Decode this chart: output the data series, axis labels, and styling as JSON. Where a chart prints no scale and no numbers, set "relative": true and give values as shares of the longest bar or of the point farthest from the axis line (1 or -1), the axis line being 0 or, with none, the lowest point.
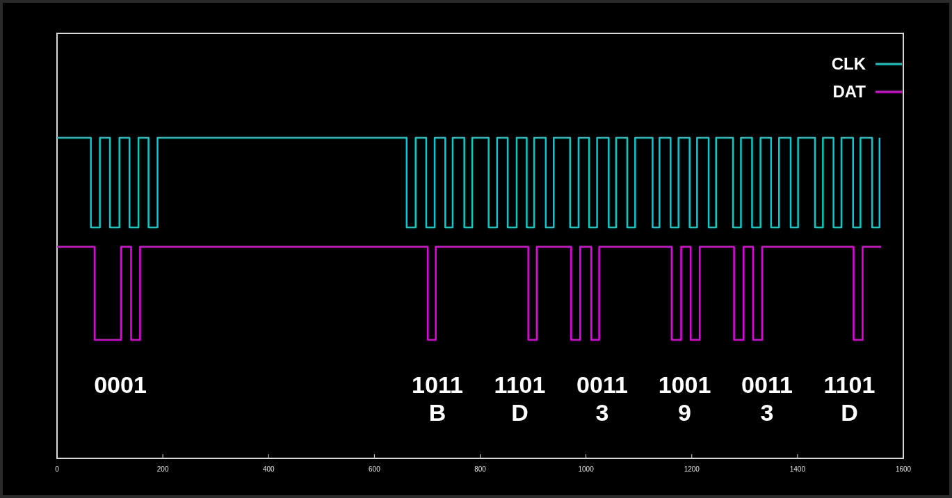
{
  "chart_data": {
    "type": "step",
    "relative": true,
    "xlim": [
      0,
      1600
    ],
    "xticks": [
      0,
      200,
      400,
      600,
      800,
      1000,
      1200,
      1400,
      1600
    ],
    "legend": "top right",
    "grid": false,
    "series": [
      {
        "name": "CLK",
        "color": "#00cccc",
        "x": [
          0,
          64,
          81,
          100,
          118,
          137,
          154,
          173,
          190,
          661,
          678,
          698,
          714,
          734,
          748,
          770,
          785,
          816,
          832,
          852,
          869,
          888,
          902,
          924,
          939,
          970,
          986,
          1006,
          1021,
          1043,
          1057,
          1078,
          1093,
          1126,
          1139,
          1160,
          1175,
          1196,
          1210,
          1232,
          1246,
          1278,
          1293,
          1314,
          1330,
          1350,
          1365,
          1387,
          1401,
          1433,
          1448,
          1468,
          1483,
          1505,
          1519,
          1541,
          1555
        ],
        "values": [
          1,
          0.72,
          1,
          0.72,
          1,
          0.72,
          1,
          0.72,
          1,
          0.72,
          1,
          0.72,
          1,
          0.72,
          1,
          0.72,
          1,
          0.72,
          1,
          0.72,
          1,
          0.72,
          1,
          0.72,
          1,
          0.72,
          1,
          0.72,
          1,
          0.72,
          1,
          0.72,
          1,
          0.72,
          1,
          0.72,
          1,
          0.72,
          1,
          0.72,
          1,
          0.72,
          1,
          0.72,
          1,
          0.72,
          1,
          0.72,
          1,
          0.72,
          1,
          0.72,
          1,
          0.72,
          1,
          0.72,
          1
        ]
      },
      {
        "name": "DAT",
        "color": "#e600e6",
        "x": [
          0,
          71,
          121,
          140,
          157,
          701,
          716,
          891,
          907,
          972,
          989,
          1010,
          1025,
          1162,
          1180,
          1198,
          1215,
          1280,
          1298,
          1316,
          1333,
          1506,
          1523,
          1558
        ],
        "values": [
          0.66,
          0.37,
          0.66,
          0.37,
          0.66,
          0.37,
          0.66,
          0.37,
          0.66,
          0.37,
          0.66,
          0.37,
          0.66,
          0.37,
          0.66,
          0.37,
          0.66,
          0.37,
          0.66,
          0.37,
          0.66,
          0.37,
          0.66,
          0.66
        ]
      }
    ],
    "annotations": [
      "0001",
      "1011\nB",
      "1101\nD",
      "0011\n3",
      "1001\n9",
      "0011\n3",
      "1101\nD"
    ]
  }
}
